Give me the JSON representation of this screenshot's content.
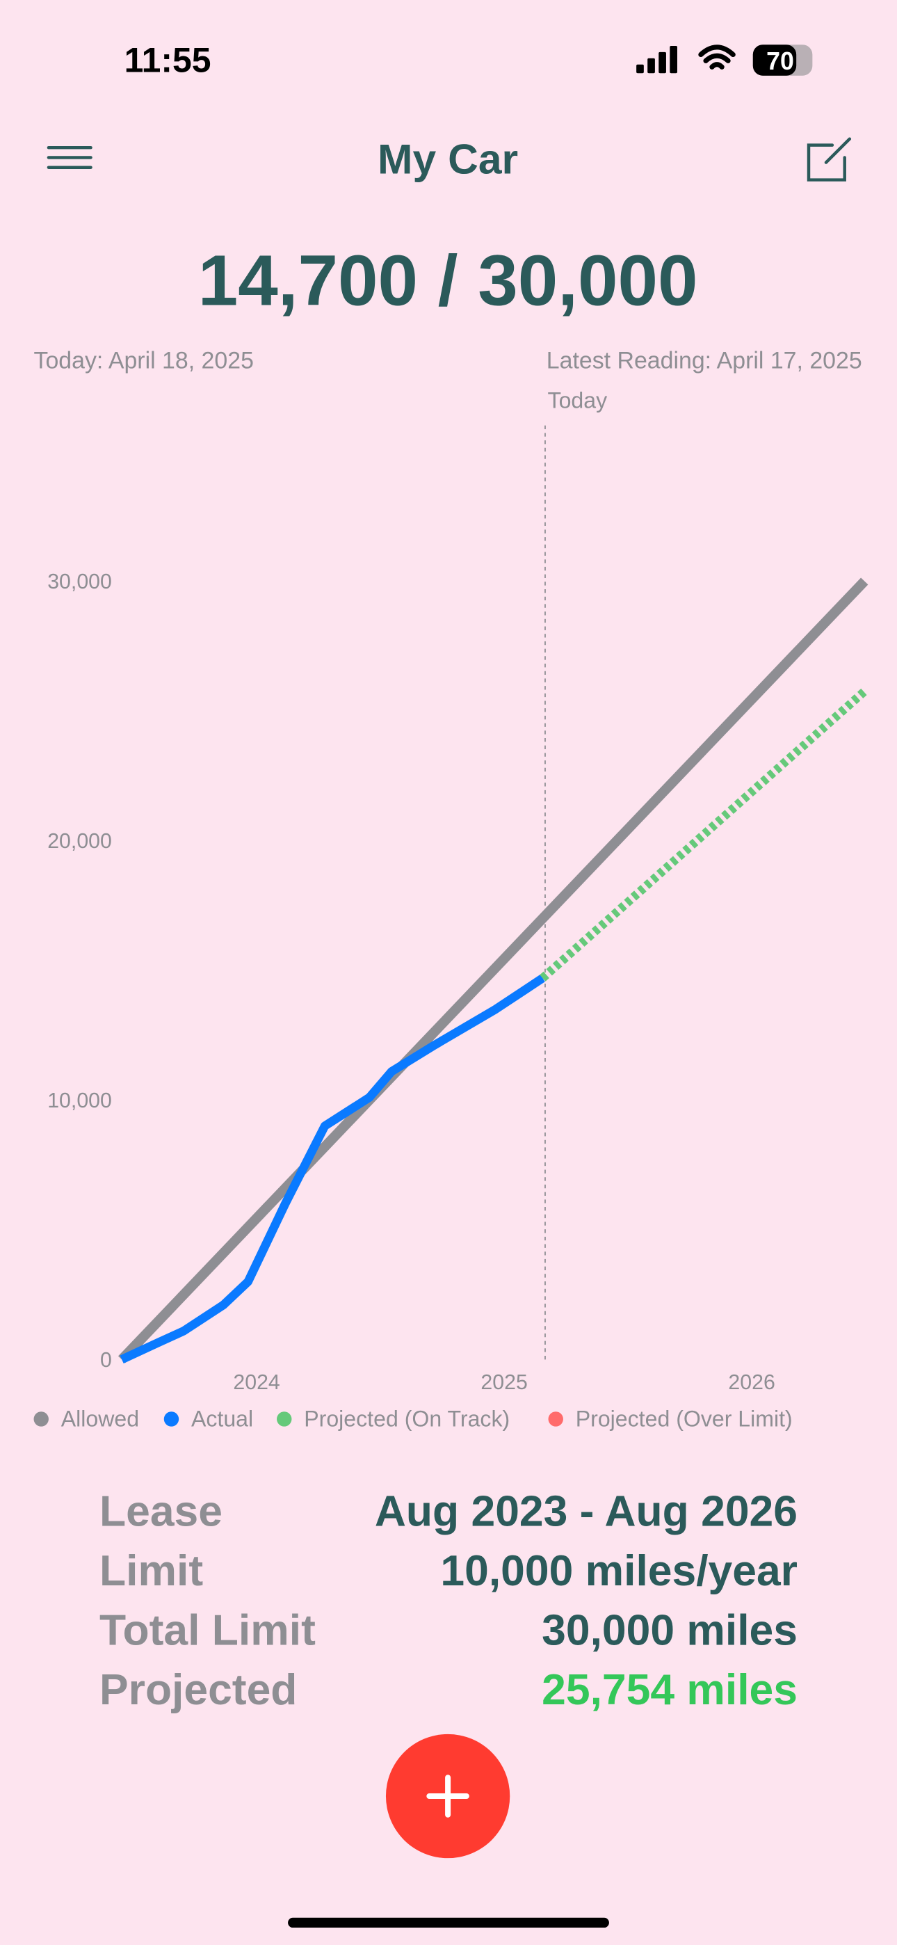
{
  "status_bar": {
    "time": "11:55",
    "battery": "70"
  },
  "header": {
    "title": "My Car"
  },
  "summary": {
    "mileage": "14,700 / 30,000",
    "today": "Today: April 18, 2025",
    "latest_reading": "Latest Reading: April 17, 2025"
  },
  "chart_data": {
    "type": "line",
    "series": [
      {
        "name": "Allowed",
        "color": "#8e8e93",
        "x": [
          2023.58,
          2026.58
        ],
        "values": [
          0,
          30000
        ]
      },
      {
        "name": "Actual",
        "color": "#0a7aff",
        "x": [
          2023.58,
          2023.72,
          2023.83,
          2023.99,
          2024.09,
          2024.24,
          2024.4,
          2024.58,
          2024.67,
          2024.84,
          2025.09,
          2025.28
        ],
        "values": [
          0,
          620,
          1100,
          2100,
          3000,
          6000,
          9000,
          10100,
          11100,
          12100,
          13500,
          14700
        ]
      },
      {
        "name": "Projected (On Track)",
        "color": "#65c97a",
        "x": [
          2025.28,
          2026.58
        ],
        "values": [
          14700,
          25754
        ]
      },
      {
        "name": "Projected (Over Limit)",
        "color": "#ff6b6b",
        "x": [],
        "values": []
      }
    ],
    "xlim": [
      2023.58,
      2026.58
    ],
    "xticks": [
      2024,
      2025,
      2026
    ],
    "ylim": [
      0,
      36000
    ],
    "yticks": [
      0,
      {
        "value": 10000,
        "label": "10,000"
      },
      {
        "value": 20000,
        "label": "20,000"
      },
      {
        "value": 30000,
        "label": "30,000"
      }
    ],
    "annotation": {
      "x": 2025.29,
      "label": "Today"
    }
  },
  "details": {
    "rows": [
      [
        "Lease",
        "Aug 2023 - Aug 2026"
      ],
      [
        "Limit",
        "10,000 miles/year"
      ],
      [
        "Total Limit",
        "30,000 miles"
      ],
      [
        "Projected",
        "25,754 miles"
      ]
    ]
  }
}
